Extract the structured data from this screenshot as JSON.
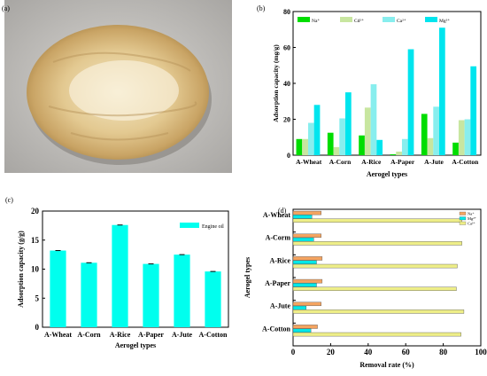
{
  "panels": {
    "a_label": "(a)",
    "b_label": "(b)",
    "c_label": "(c)",
    "d_label": "(d)"
  },
  "chart_data": [
    {
      "panel": "b",
      "type": "bar",
      "categories": [
        "A-Wheat",
        "A-Corn",
        "A-Rice",
        "A-Paper",
        "A-Jute",
        "A-Cotton"
      ],
      "series": [
        {
          "name": "Na⁺",
          "color": "#00dd00",
          "values": [
            9,
            12.5,
            11,
            0.5,
            23,
            7
          ]
        },
        {
          "name": "Cd²⁺",
          "color": "#c8e6a0",
          "values": [
            9,
            4.5,
            26.5,
            2,
            9.5,
            19.5
          ]
        },
        {
          "name": "Ca²⁺",
          "color": "#88eeee",
          "values": [
            18,
            20.5,
            39.5,
            9,
            27,
            20
          ]
        },
        {
          "name": "Mg²⁺",
          "color": "#00e5ee",
          "values": [
            28,
            35,
            8.5,
            59,
            71,
            49.5
          ]
        }
      ],
      "xlabel": "Aerogel types",
      "ylabel": "Adsorption capacity (mg/g)",
      "ylim": [
        0,
        80
      ],
      "yticks": [
        "0",
        "20",
        "40",
        "60",
        "80"
      ],
      "legend": "top-left",
      "grid": false
    },
    {
      "panel": "c",
      "type": "bar",
      "categories": [
        "A-Wheat",
        "A-Corn",
        "A-Rice",
        "A-Paper",
        "A-Jute",
        "A-Cotton"
      ],
      "series": [
        {
          "name": "Engine oil",
          "color": "#00ffee",
          "values": [
            13.2,
            11.1,
            17.6,
            10.9,
            12.5,
            9.6
          ]
        }
      ],
      "xlabel": "Aerogel types",
      "ylabel": "Adsorption capacity (g/g)",
      "ylim": [
        0,
        20
      ],
      "yticks": [
        "0",
        "5",
        "10",
        "15",
        "20"
      ],
      "legend": "top-right",
      "grid": false
    },
    {
      "panel": "d",
      "type": "bar",
      "orientation": "horizontal",
      "categories": [
        "A-Wheat",
        "A-Corm",
        "A-Rice",
        "A-Paper",
        "A-Jute",
        "A-Cotton"
      ],
      "series": [
        {
          "name": "Na⁺",
          "color": "#f4a460",
          "values": [
            15,
            15,
            15.5,
            15.5,
            15,
            13
          ]
        },
        {
          "name": "Mg²⁺",
          "color": "#00e8e8",
          "values": [
            10,
            11,
            12.5,
            12.5,
            7,
            9.5
          ]
        },
        {
          "name": "Ca²⁺",
          "color": "#eeee88",
          "values": [
            90,
            90,
            87.5,
            87,
            91,
            89.5
          ]
        }
      ],
      "xlabel": "Removal rate (%)",
      "ylabel": "Aerogel types",
      "xlim": [
        0,
        100
      ],
      "xticks": [
        "0",
        "20",
        "40",
        "60",
        "80",
        "100"
      ],
      "legend": "top-right",
      "grid": false
    }
  ]
}
